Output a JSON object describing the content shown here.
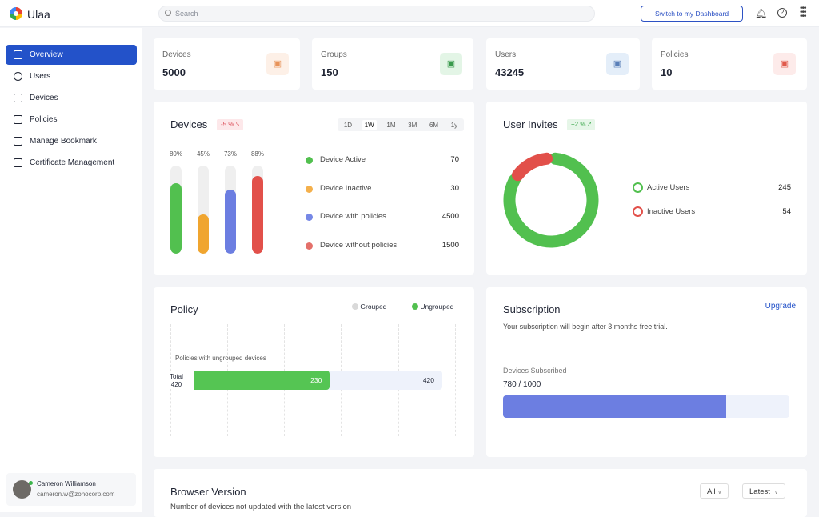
{
  "app": {
    "name": "Ulaa"
  },
  "header": {
    "search_placeholder": "Search",
    "switch_label": "Switch to my Dashboard"
  },
  "sidebar": {
    "items": [
      {
        "label": "Overview",
        "active": true
      },
      {
        "label": "Users"
      },
      {
        "label": "Devices"
      },
      {
        "label": "Policies"
      },
      {
        "label": "Manage Bookmark"
      },
      {
        "label": "Certificate Management"
      }
    ]
  },
  "user": {
    "name": "Cameron Williamson",
    "email": "cameron.w@zohocorp.com"
  },
  "stats": [
    {
      "label": "Devices",
      "value": "5000",
      "icon": "device-icon",
      "color": "#e7935a",
      "bg": "#fdf0e7"
    },
    {
      "label": "Groups",
      "value": "150",
      "icon": "group-icon",
      "color": "#3a9a4d",
      "bg": "#e3f5e6"
    },
    {
      "label": "Users",
      "value": "43245",
      "icon": "user-icon",
      "color": "#5a7fb8",
      "bg": "#e4eef9"
    },
    {
      "label": "Policies",
      "value": "10",
      "icon": "policy-icon",
      "color": "#e05a4b",
      "bg": "#fdebea"
    }
  ],
  "devices": {
    "title": "Devices",
    "change": "-5 %",
    "ranges": [
      "1D",
      "1W",
      "1M",
      "3M",
      "6M",
      "1y"
    ],
    "selected_range": "1W",
    "bars": [
      {
        "pct": "80%",
        "value": 80,
        "color": "#52c04f"
      },
      {
        "pct": "45%",
        "value": 45,
        "color": "#f0a52f"
      },
      {
        "pct": "73%",
        "value": 73,
        "color": "#6c7ee1"
      },
      {
        "pct": "88%",
        "value": 88,
        "color": "#e2504a"
      }
    ],
    "legend": [
      {
        "label": "Device Active",
        "value": "70",
        "color": "#52c04f"
      },
      {
        "label": "Device  Inactive",
        "value": "30",
        "color": "#f4b04c"
      },
      {
        "label": "Device  with policies",
        "value": "4500",
        "color": "#7688e6"
      },
      {
        "label": "Device  without policies",
        "value": "1500",
        "color": "#e4706a"
      }
    ]
  },
  "invites": {
    "title": "User Invites",
    "change": "+2 %",
    "legend": [
      {
        "label": "Active Users",
        "value": "245",
        "color": "#52c04f"
      },
      {
        "label": "Inactive Users",
        "value": "54",
        "color": "#e2504a"
      }
    ]
  },
  "policy": {
    "title": "Policy",
    "legend": [
      {
        "label": "Grouped",
        "color": "#d9d9d9"
      },
      {
        "label": "Ungrouped",
        "color": "#52c04f"
      }
    ],
    "bar_label": "Policies with ungrouped devices",
    "total_label": "Total",
    "total": "420",
    "ungrouped": "230",
    "ungrouped_value": 230,
    "total_value": 420
  },
  "subscription": {
    "title": "Subscription",
    "upgrade": "Upgrade",
    "note": "Your subscription will begin after 3 months free trial.",
    "label": "Devices Subscribed",
    "value": "780 / 1000",
    "used": 780,
    "total": 1000
  },
  "browser": {
    "title": "Browser Version",
    "subtitle": "Number of devices not updated with the latest version",
    "filter1": "All",
    "filter2": "Latest"
  }
}
